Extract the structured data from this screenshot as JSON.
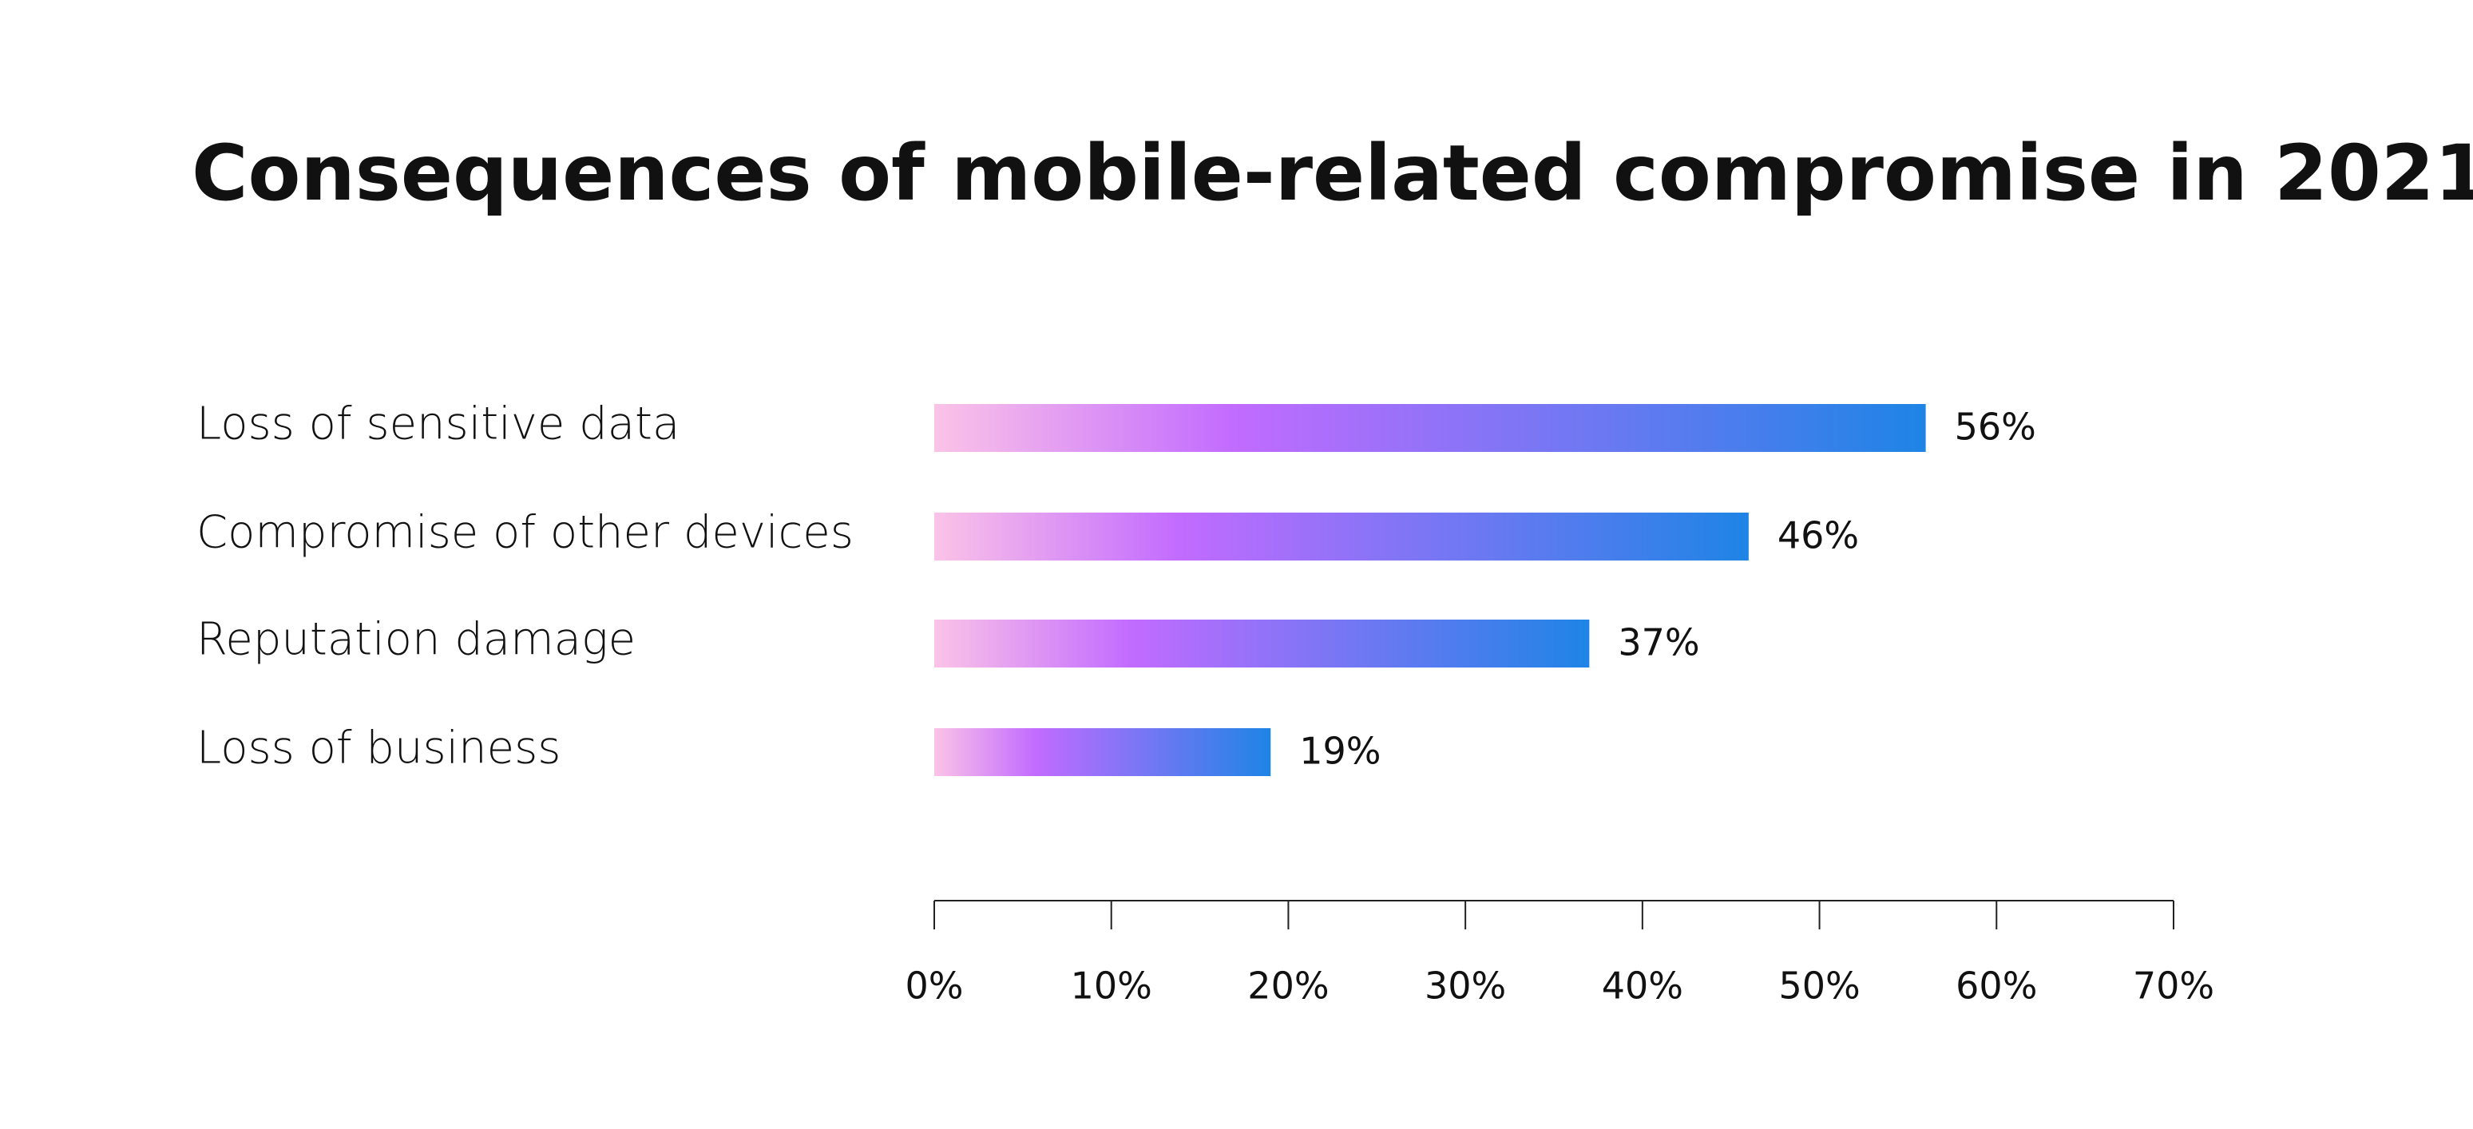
{
  "chart_data": {
    "type": "hbar",
    "title": "Consequences of mobile-related compromise in 2021",
    "categories": [
      "Loss of sensitive data",
      "Compromise of other devices",
      "Reputation damage",
      "Loss of business"
    ],
    "values": [
      56,
      46,
      37,
      19
    ],
    "value_labels": [
      "56%",
      "46%",
      "37%",
      "19%"
    ],
    "colors": [
      "#fbc3e7",
      "#c26bff",
      "#1e84e6"
    ],
    "xlim": [
      0,
      70
    ],
    "xticks": [
      {
        "value": 0,
        "label": "0%"
      },
      {
        "value": 10,
        "label": "10%"
      },
      {
        "value": 20,
        "label": "20%"
      },
      {
        "value": 30,
        "label": "30%"
      },
      {
        "value": 40,
        "label": "40%"
      },
      {
        "value": 50,
        "label": "50%"
      },
      {
        "value": 60,
        "label": "60%"
      },
      {
        "value": 70,
        "label": "70%"
      }
    ],
    "grid": false
  }
}
